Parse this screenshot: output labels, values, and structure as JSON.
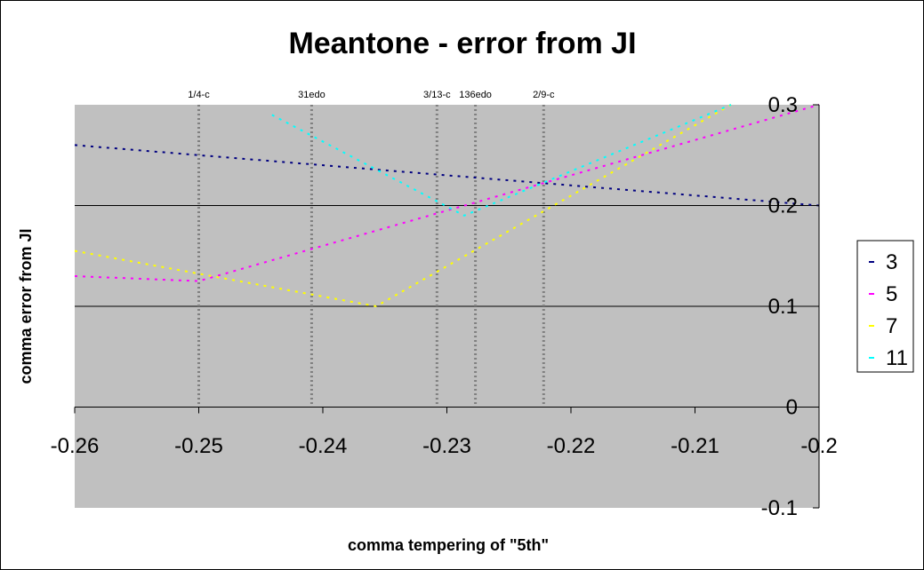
{
  "chart_data": {
    "type": "line",
    "title": "Meantone - error from JI",
    "xlabel": "comma tempering of \"5th\"",
    "ylabel": "comma error from JI",
    "xlim": [
      -0.26,
      -0.2
    ],
    "ylim": [
      -0.1,
      0.3
    ],
    "x_ticks": [
      "-0.26",
      "-0.25",
      "-0.24",
      "-0.23",
      "-0.22",
      "-0.21",
      "-0.2"
    ],
    "y_ticks": [
      "-0.1",
      "0",
      "0.1",
      "0.2",
      "0.3"
    ],
    "grid": "horizontal major gridlines at 0, 0.1, 0.2",
    "legend_position": "right",
    "plot_background": "#c0c0c0",
    "markers": [
      {
        "label": "1/4-c",
        "x": -0.25
      },
      {
        "label": "31edo",
        "x": -0.2409
      },
      {
        "label": "3/13-c",
        "x": -0.2308
      },
      {
        "label": "136edo",
        "x": -0.2277
      },
      {
        "label": "2/9-c",
        "x": -0.2222
      }
    ],
    "series": [
      {
        "name": "3",
        "color": "#000080",
        "x": [
          -0.26,
          -0.2
        ],
        "y": [
          0.26,
          0.2
        ]
      },
      {
        "name": "5",
        "color": "#ff00ff",
        "x": [
          -0.26,
          -0.25,
          -0.2
        ],
        "y": [
          0.13,
          0.125,
          0.3
        ]
      },
      {
        "name": "7",
        "color": "#ffff00",
        "x": [
          -0.26,
          -0.2357,
          -0.2071
        ],
        "y": [
          0.155,
          0.1,
          0.3
        ]
      },
      {
        "name": "11",
        "color": "#00ffff",
        "x": [
          -0.2441,
          -0.2286,
          -0.2071
        ],
        "y": [
          0.29,
          0.19,
          0.3
        ]
      }
    ]
  }
}
